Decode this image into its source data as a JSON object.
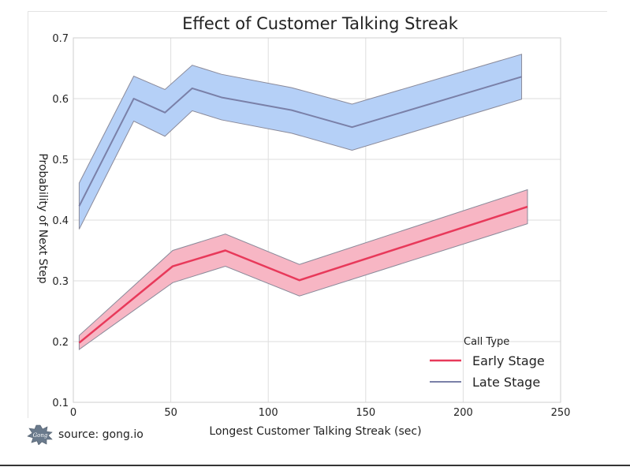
{
  "chart_data": {
    "type": "line",
    "title": "Effect of Customer Talking Streak",
    "xlabel": "Longest Customer Talking Streak (sec)",
    "ylabel": "Probability of Next Step",
    "xlim": [
      0,
      250
    ],
    "ylim": [
      0.1,
      0.7
    ],
    "xticks": [
      0,
      50,
      100,
      150,
      200,
      250
    ],
    "yticks": [
      0.1,
      0.2,
      0.3,
      0.4,
      0.5,
      0.6,
      0.7
    ],
    "grid": true,
    "legend": {
      "title": "Call Type",
      "placement": "lower-right"
    },
    "series": [
      {
        "name": "Early Stage",
        "color": "#e8395a",
        "band_color": "#f7b6c4",
        "x": [
          3,
          51,
          78,
          116,
          233
        ],
        "values": [
          0.198,
          0.324,
          0.35,
          0.301,
          0.422
        ],
        "lower": [
          0.187,
          0.297,
          0.324,
          0.275,
          0.394
        ],
        "upper": [
          0.21,
          0.35,
          0.377,
          0.327,
          0.45
        ]
      },
      {
        "name": "Late Stage",
        "color": "#7a80a8",
        "band_color": "#b5d0f7",
        "x": [
          3,
          31,
          47,
          61,
          76,
          112,
          143,
          230
        ],
        "values": [
          0.423,
          0.6,
          0.577,
          0.617,
          0.602,
          0.581,
          0.553,
          0.636
        ],
        "lower": [
          0.385,
          0.563,
          0.538,
          0.58,
          0.565,
          0.543,
          0.515,
          0.599
        ],
        "upper": [
          0.461,
          0.637,
          0.615,
          0.655,
          0.64,
          0.618,
          0.591,
          0.673
        ]
      }
    ]
  },
  "source": {
    "logo_text": "Gong",
    "text": "source: gong.io"
  }
}
